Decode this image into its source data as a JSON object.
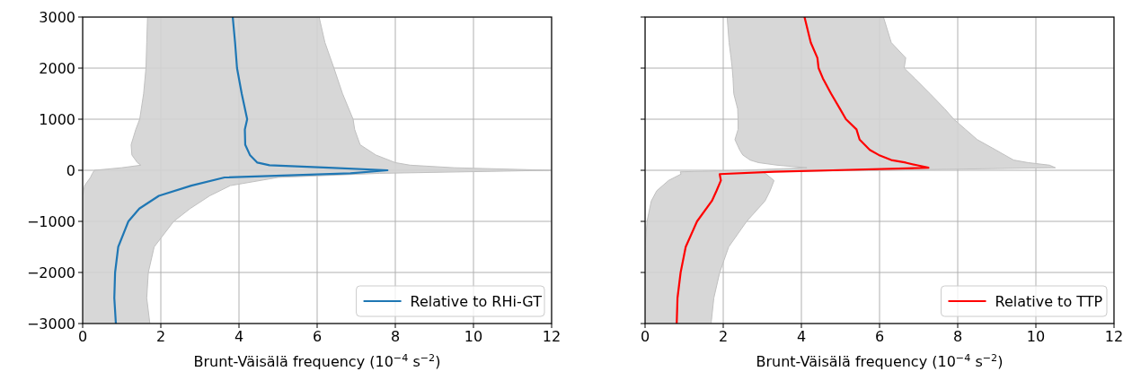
{
  "chart_data": [
    {
      "type": "line",
      "orientation": "horizontal",
      "xlabel": "Brunt-Väisälä frequency (10$^{−4}$ s$^{−2}$)",
      "xlim": [
        0,
        12
      ],
      "xticks": [
        0,
        2,
        4,
        6,
        8,
        10,
        12
      ],
      "ylim": [
        -3000,
        3000
      ],
      "yticks": [
        {
          "value": -3000,
          "label": "−3000"
        },
        {
          "value": -2000,
          "label": "−2000"
        },
        {
          "value": -1000,
          "label": "−1000"
        },
        0,
        1000,
        2000,
        3000
      ],
      "grid": true,
      "legend": "bottom right",
      "x": [
        3000,
        2500,
        2000,
        1500,
        1000,
        800,
        500,
        300,
        150,
        100,
        50,
        0,
        -60,
        -140,
        -300,
        -500,
        -750,
        -1000,
        -1500,
        -2000,
        -2500,
        -3000
      ],
      "series": [
        {
          "name": "Relative to RHi-GT",
          "color": "#1f77b4",
          "values": [
            3.84,
            3.9,
            3.95,
            4.07,
            4.21,
            4.15,
            4.16,
            4.28,
            4.47,
            4.78,
            6.3,
            7.8,
            6.85,
            3.63,
            2.78,
            1.95,
            1.45,
            1.17,
            0.91,
            0.83,
            0.81,
            0.85
          ],
          "lower": [
            1.66,
            1.64,
            1.62,
            1.56,
            1.46,
            1.36,
            1.24,
            1.26,
            1.4,
            1.49,
            1.0,
            0.3,
            0.25,
            0.2,
            0.05,
            0,
            0,
            0,
            0,
            0,
            0,
            0
          ],
          "upper": [
            6.05,
            6.2,
            6.43,
            6.65,
            6.92,
            6.96,
            7.1,
            7.5,
            8.0,
            8.38,
            9.5,
            12,
            7.6,
            5.0,
            3.78,
            3.25,
            2.75,
            2.33,
            1.83,
            1.68,
            1.64,
            1.72
          ]
        }
      ]
    },
    {
      "type": "line",
      "orientation": "horizontal",
      "xlabel": "Brunt-Väisälä frequency (10$^{−4}$ s$^{−2}$)",
      "xlim": [
        0,
        12
      ],
      "xticks": [
        0,
        2,
        4,
        6,
        8,
        10,
        12
      ],
      "ylim": [
        -3000,
        3000
      ],
      "yticks": [
        -3000,
        -2000,
        -1000,
        0,
        1000,
        2000,
        3000
      ],
      "tick_labels": "x",
      "grid": true,
      "legend": "bottom right",
      "x": [
        3000,
        2500,
        2200,
        2000,
        1800,
        1500,
        1200,
        1000,
        800,
        600,
        400,
        300,
        200,
        150,
        100,
        50,
        0,
        -30,
        -75,
        -200,
        -400,
        -600,
        -1000,
        -1500,
        -2000,
        -2500,
        -3000
      ],
      "series": [
        {
          "name": "Relative to TTP",
          "color": "#ff0000",
          "values": [
            4.08,
            4.24,
            4.41,
            4.44,
            4.55,
            4.76,
            4.99,
            5.14,
            5.41,
            5.49,
            5.75,
            5.98,
            6.3,
            6.67,
            6.95,
            7.25,
            4.8,
            3.3,
            1.91,
            1.94,
            1.83,
            1.71,
            1.33,
            1.04,
            0.91,
            0.83,
            0.81
          ],
          "lower": [
            2.1,
            2.15,
            2.2,
            2.23,
            2.25,
            2.27,
            2.37,
            2.38,
            2.38,
            2.3,
            2.42,
            2.5,
            2.69,
            2.9,
            3.38,
            4.14,
            2.5,
            0.9,
            0.92,
            0.6,
            0.3,
            0.16,
            0.05,
            0,
            0,
            0,
            0
          ],
          "upper": [
            6.1,
            6.3,
            6.67,
            6.63,
            6.9,
            7.29,
            7.67,
            7.9,
            8.2,
            8.5,
            8.97,
            9.2,
            9.43,
            9.8,
            10.35,
            10.5,
            6.0,
            3.0,
            3.1,
            3.3,
            3.2,
            3.07,
            2.6,
            2.14,
            1.91,
            1.76,
            1.69
          ]
        }
      ]
    }
  ]
}
